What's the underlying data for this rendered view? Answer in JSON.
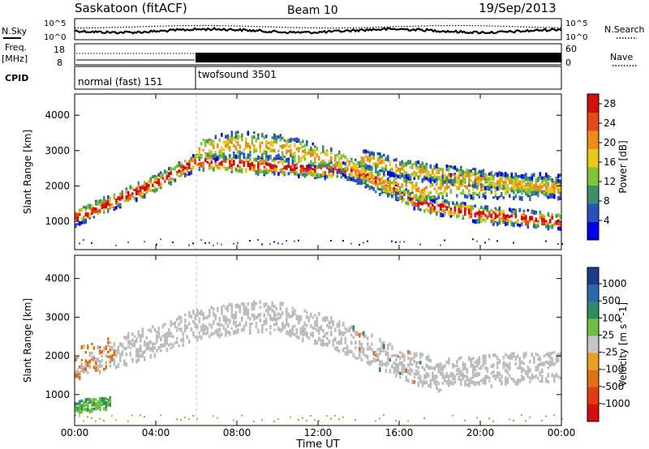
{
  "header": {
    "station": "Saskatoon (fitACF)",
    "beam": "Beam 10",
    "date": "19/Sep/2013"
  },
  "noise_panel": {
    "left_label": "N.Sky",
    "right_label": "N.Search",
    "tick_top": "10^5",
    "tick_bottom": "10^0"
  },
  "freq_panel": {
    "left_label_1": "Freq.",
    "left_label_2": "[MHz]",
    "right_label": "Nave",
    "left_ticks": [
      "18",
      "8"
    ],
    "right_ticks": [
      "60",
      "0"
    ]
  },
  "cpid": {
    "label": "CPID",
    "segments": [
      {
        "name": "normal (fast) 151",
        "start_hour": 0,
        "end_hour": 6
      },
      {
        "name": "twofsound 3501",
        "start_hour": 6,
        "end_hour": 24
      }
    ]
  },
  "colors": {
    "power_scale": [
      "#0000ee",
      "#2a52b8",
      "#3f8e6a",
      "#7fc437",
      "#e8c71a",
      "#f08a1a",
      "#e54a17",
      "#d10f0f"
    ],
    "velocity_scale": [
      "#1a3a8c",
      "#2e6aa8",
      "#2f8a6a",
      "#6fc040",
      "#c6c6c6",
      "#e8a020",
      "#e07018",
      "#e03c14",
      "#d40d0d"
    ],
    "gray_scatter": "#bdbdbd"
  },
  "chart_data": [
    {
      "type": "heatmap",
      "panel": "power",
      "ylabel": "Slant Range [km]",
      "ylim": [
        200,
        4600
      ],
      "yticks": [
        1000,
        2000,
        3000,
        4000
      ],
      "colorbar_label": "Power [dB]",
      "colorbar_ticks": [
        4,
        8,
        12,
        16,
        20,
        24,
        28
      ],
      "colorbar_range": [
        0,
        30
      ],
      "bands": [
        {
          "name": "low",
          "points": [
            [
              0,
              1100
            ],
            [
              2,
              1600
            ],
            [
              4,
              2100
            ],
            [
              6,
              2700
            ],
            [
              14,
              2400
            ],
            [
              17,
              1500
            ],
            [
              20,
              1200
            ],
            [
              24,
              1000
            ]
          ],
          "width_km": 450
        },
        {
          "name": "high",
          "points": [
            [
              6,
              3000
            ],
            [
              8,
              3200
            ],
            [
              10,
              3100
            ],
            [
              13,
              2700
            ],
            [
              15,
              2100
            ],
            [
              17,
              1900
            ],
            [
              19,
              2000
            ],
            [
              24,
              2000
            ]
          ],
          "width_km": 700
        },
        {
          "name": "upper",
          "points": [
            [
              14,
              2800
            ],
            [
              16,
              2500
            ],
            [
              20,
              2200
            ],
            [
              24,
              1900
            ]
          ],
          "width_km": 500
        }
      ]
    },
    {
      "type": "heatmap",
      "panel": "velocity",
      "ylabel": "Slant Range [km]",
      "ylim": [
        200,
        4600
      ],
      "yticks": [
        1000,
        2000,
        3000,
        4000
      ],
      "colorbar_label": "Velocity [m s^-1]",
      "colorbar_ticks": [
        "1000",
        "500",
        "100",
        "25",
        "-25",
        "-100",
        "-500",
        "-1000"
      ],
      "bands": [
        {
          "name": "ground",
          "points": [
            [
              0,
              1800
            ],
            [
              2,
              2100
            ],
            [
              4,
              2400
            ],
            [
              6,
              2800
            ],
            [
              8,
              3000
            ],
            [
              10,
              3000
            ],
            [
              12,
              2700
            ],
            [
              14,
              2300
            ],
            [
              16,
              1800
            ],
            [
              18,
              1500
            ],
            [
              20,
              1600
            ],
            [
              22,
              1700
            ],
            [
              24,
              1700
            ]
          ],
          "width_km": 800
        },
        {
          "name": "low_green",
          "points": [
            [
              0,
              700
            ],
            [
              1,
              750
            ],
            [
              1.8,
              800
            ]
          ],
          "width_km": 300
        }
      ]
    }
  ],
  "x_axis": {
    "label": "Time UT",
    "ticks": [
      "00:00",
      "04:00",
      "08:00",
      "12:00",
      "16:00",
      "20:00",
      "00:00"
    ],
    "range_hours": [
      0,
      24
    ]
  }
}
